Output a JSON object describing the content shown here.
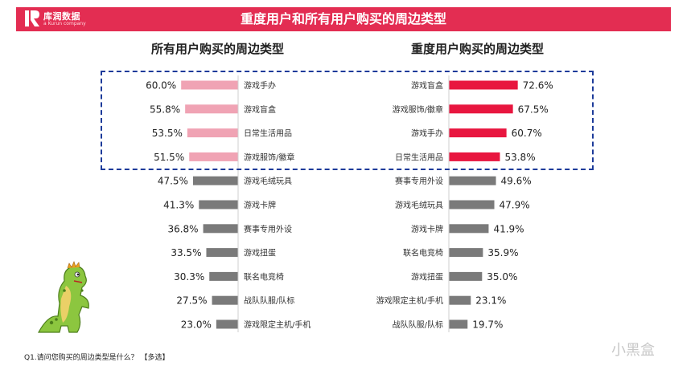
{
  "header": {
    "brand": "库润数据",
    "brand_sub": "a Kurun company",
    "title": "重度用户和所有用户购买的周边类型"
  },
  "colors": {
    "header_red": "#e32d52",
    "highlight_pink": "#f0a3b4",
    "highlight_red": "#e8163f",
    "bar_gray": "#7a7a7a",
    "box_blue": "#1d3b9a"
  },
  "footer": {
    "note": "Q1.请问您购买的周边类型是什么？ 【多选】",
    "watermark": "小黑盒"
  },
  "chart_data": [
    {
      "type": "bar",
      "orientation": "horizontal",
      "title": "所有用户购买的周边类型",
      "categories": [
        "游戏手办",
        "游戏盲盒",
        "日常生活用品",
        "游戏服饰/徽章",
        "游戏毛绒玩具",
        "游戏卡牌",
        "赛事专用外设",
        "游戏扭蛋",
        "联名电竞椅",
        "战队队服/队标",
        "游戏限定主机/手机"
      ],
      "values": [
        60.0,
        55.8,
        53.5,
        51.5,
        47.5,
        41.3,
        36.8,
        33.5,
        30.3,
        27.5,
        23.0
      ],
      "value_labels": [
        "60.0%",
        "55.8%",
        "53.5%",
        "51.5%",
        "47.5%",
        "41.3%",
        "36.8%",
        "33.5%",
        "30.3%",
        "27.5%",
        "23.0%"
      ],
      "highlighted_top": 4,
      "unit": "%"
    },
    {
      "type": "bar",
      "orientation": "horizontal",
      "title": "重度用户购买的周边类型",
      "categories": [
        "游戏盲盒",
        "游戏服饰/徽章",
        "游戏手办",
        "日常生活用品",
        "赛事专用外设",
        "游戏毛绒玩具",
        "游戏卡牌",
        "联名电竞椅",
        "游戏扭蛋",
        "游戏限定主机/手机",
        "战队队服/队标"
      ],
      "values": [
        72.6,
        67.5,
        60.7,
        53.8,
        49.6,
        47.9,
        41.9,
        35.9,
        35.0,
        23.1,
        19.7
      ],
      "value_labels": [
        "72.6%",
        "67.5%",
        "60.7%",
        "53.8%",
        "49.6%",
        "47.9%",
        "41.9%",
        "35.9%",
        "35.0%",
        "23.1%",
        "19.7%"
      ],
      "highlighted_top": 4,
      "unit": "%"
    }
  ]
}
